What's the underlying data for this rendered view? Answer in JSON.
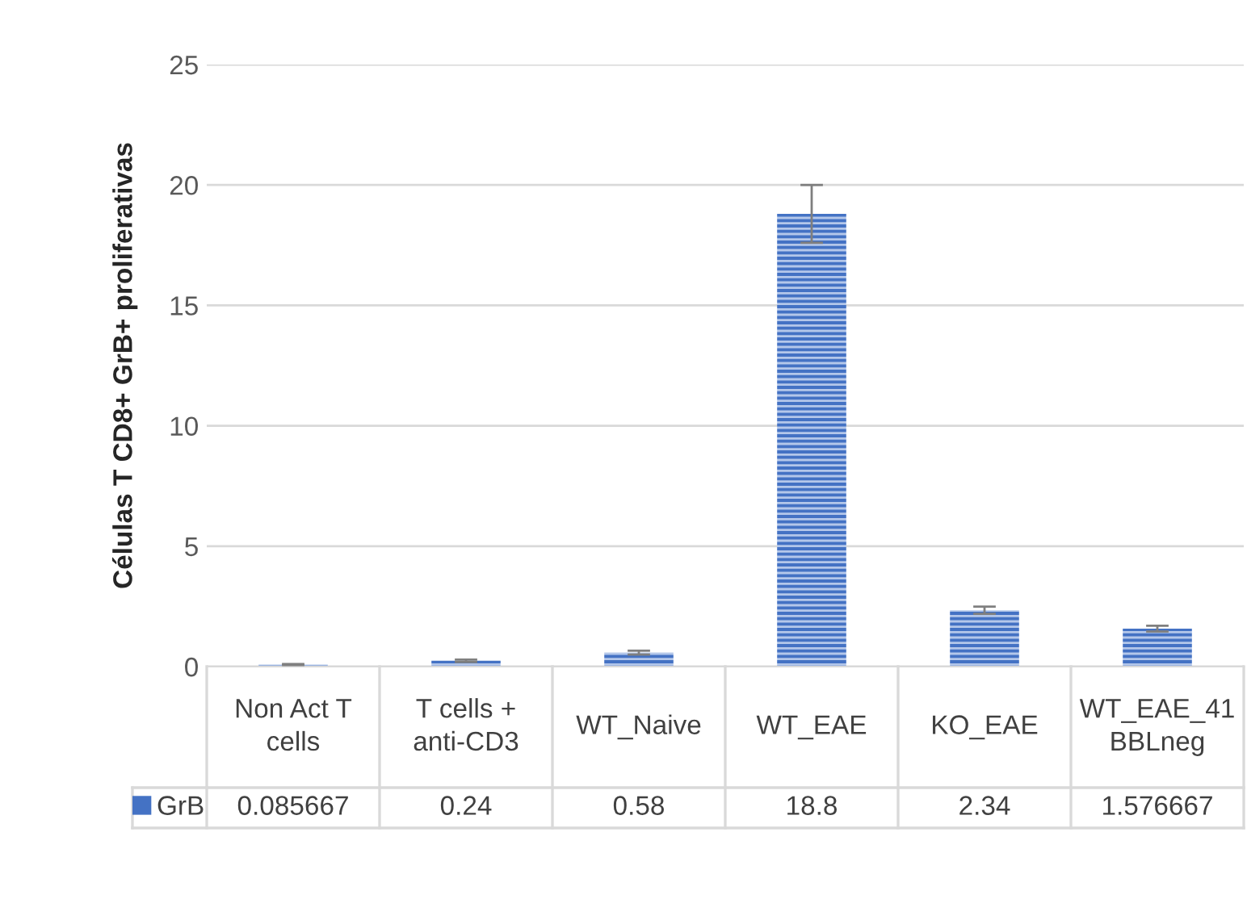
{
  "chart_data": {
    "type": "bar",
    "ylabel": "Células T CD8+ GrB+ proliferativas",
    "categories": [
      "Non Act T cells",
      "T cells + anti-CD3",
      "WT_Naive",
      "WT_EAE",
      "KO_EAE",
      "WT_EAE_41BBLneg"
    ],
    "series": [
      {
        "name": "GrB",
        "color": "#4472c4",
        "values": [
          0.085667,
          0.24,
          0.58,
          18.8,
          2.34,
          1.576667
        ],
        "errors": [
          0.02,
          0.05,
          0.08,
          1.2,
          0.15,
          0.12
        ]
      }
    ],
    "ylim": [
      0,
      25
    ],
    "yticks": [
      0,
      5,
      10,
      15,
      20,
      25
    ],
    "grid": "y",
    "data_labels": true,
    "legend": "bottom left"
  }
}
